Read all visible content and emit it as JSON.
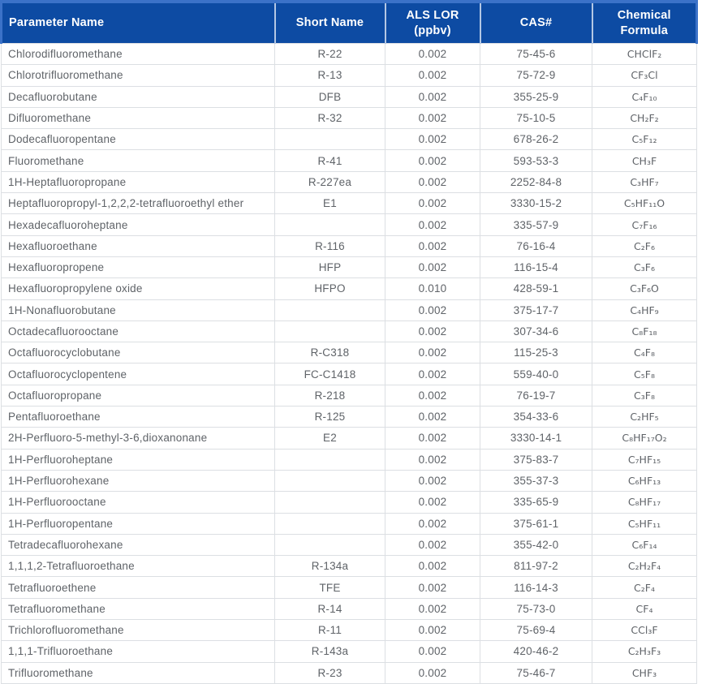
{
  "colors": {
    "header_bg": "#0d4ba3",
    "header_border": "#3b72c8",
    "header_text": "#ffffff",
    "body_text": "#5f6368",
    "grid_line": "#dcdfe3",
    "row_bg": "#ffffff"
  },
  "table": {
    "columns": [
      {
        "key": "parameter",
        "label": "Parameter Name"
      },
      {
        "key": "short_name",
        "label": "Short Name"
      },
      {
        "key": "als_lor",
        "label": "ALS LOR (ppbv)"
      },
      {
        "key": "cas",
        "label": "CAS#"
      },
      {
        "key": "formula",
        "label": "Chemical Formula"
      }
    ],
    "rows": [
      {
        "parameter": "Chlorodifluoromethane",
        "short_name": "R-22",
        "als_lor": "0.002",
        "cas": "75-45-6",
        "formula": "CHClF₂"
      },
      {
        "parameter": "Chlorotrifluoromethane",
        "short_name": "R-13",
        "als_lor": "0.002",
        "cas": "75-72-9",
        "formula": "CF₃Cl"
      },
      {
        "parameter": "Decafluorobutane",
        "short_name": "DFB",
        "als_lor": "0.002",
        "cas": "355-25-9",
        "formula": "C₄F₁₀"
      },
      {
        "parameter": "Difluoromethane",
        "short_name": "R-32",
        "als_lor": "0.002",
        "cas": "75-10-5",
        "formula": "CH₂F₂"
      },
      {
        "parameter": "Dodecafluoropentane",
        "short_name": "",
        "als_lor": "0.002",
        "cas": "678-26-2",
        "formula": "C₅F₁₂"
      },
      {
        "parameter": "Fluoromethane",
        "short_name": "R-41",
        "als_lor": "0.002",
        "cas": "593-53-3",
        "formula": "CH₃F"
      },
      {
        "parameter": "1H-Heptafluoropropane",
        "short_name": "R-227ea",
        "als_lor": "0.002",
        "cas": "2252-84-8",
        "formula": "C₃HF₇"
      },
      {
        "parameter": "Heptafluoropropyl-1,2,2,2-tetrafluoroethyl ether",
        "short_name": "E1",
        "als_lor": "0.002",
        "cas": "3330-15-2",
        "formula": "C₅HF₁₁O"
      },
      {
        "parameter": "Hexadecafluoroheptane",
        "short_name": "",
        "als_lor": "0.002",
        "cas": "335-57-9",
        "formula": "C₇F₁₆"
      },
      {
        "parameter": "Hexafluoroethane",
        "short_name": "R-116",
        "als_lor": "0.002",
        "cas": "76-16-4",
        "formula": "C₂F₆"
      },
      {
        "parameter": "Hexafluoropropene",
        "short_name": "HFP",
        "als_lor": "0.002",
        "cas": "116-15-4",
        "formula": "C₃F₆"
      },
      {
        "parameter": "Hexafluoropropylene oxide",
        "short_name": "HFPO",
        "als_lor": "0.010",
        "cas": "428-59-1",
        "formula": "C₃F₆O"
      },
      {
        "parameter": "1H-Nonafluorobutane",
        "short_name": "",
        "als_lor": "0.002",
        "cas": "375-17-7",
        "formula": "C₄HF₉"
      },
      {
        "parameter": "Octadecafluorooctane",
        "short_name": "",
        "als_lor": "0.002",
        "cas": "307-34-6",
        "formula": "C₈F₁₈"
      },
      {
        "parameter": "Octafluorocyclobutane",
        "short_name": "R-C318",
        "als_lor": "0.002",
        "cas": "115-25-3",
        "formula": "C₄F₈"
      },
      {
        "parameter": "Octafluorocyclopentene",
        "short_name": "FC-C1418",
        "als_lor": "0.002",
        "cas": "559-40-0",
        "formula": "C₅F₈"
      },
      {
        "parameter": "Octafluoropropane",
        "short_name": "R-218",
        "als_lor": "0.002",
        "cas": "76-19-7",
        "formula": "C₃F₈"
      },
      {
        "parameter": "Pentafluoroethane",
        "short_name": "R-125",
        "als_lor": "0.002",
        "cas": "354-33-6",
        "formula": "C₂HF₅"
      },
      {
        "parameter": "2H-Perfluoro-5-methyl-3-6,dioxanonane",
        "short_name": "E2",
        "als_lor": "0.002",
        "cas": "3330-14-1",
        "formula": "C₈HF₁₇O₂"
      },
      {
        "parameter": "1H-Perfluoroheptane",
        "short_name": "",
        "als_lor": "0.002",
        "cas": "375-83-7",
        "formula": "C₇HF₁₅"
      },
      {
        "parameter": "1H-Perfluorohexane",
        "short_name": "",
        "als_lor": "0.002",
        "cas": "355-37-3",
        "formula": "C₆HF₁₃"
      },
      {
        "parameter": "1H-Perfluorooctane",
        "short_name": "",
        "als_lor": "0.002",
        "cas": "335-65-9",
        "formula": "C₈HF₁₇"
      },
      {
        "parameter": "1H-Perfluoropentane",
        "short_name": "",
        "als_lor": "0.002",
        "cas": "375-61-1",
        "formula": "C₅HF₁₁"
      },
      {
        "parameter": "Tetradecafluorohexane",
        "short_name": "",
        "als_lor": "0.002",
        "cas": "355-42-0",
        "formula": "C₆F₁₄"
      },
      {
        "parameter": "1,1,1,2-Tetrafluoroethane",
        "short_name": "R-134a",
        "als_lor": "0.002",
        "cas": "811-97-2",
        "formula": "C₂H₂F₄"
      },
      {
        "parameter": "Tetrafluoroethene",
        "short_name": "TFE",
        "als_lor": "0.002",
        "cas": "116-14-3",
        "formula": "C₂F₄"
      },
      {
        "parameter": "Tetrafluoromethane",
        "short_name": "R-14",
        "als_lor": "0.002",
        "cas": "75-73-0",
        "formula": "CF₄"
      },
      {
        "parameter": "Trichlorofluoromethane",
        "short_name": "R-11",
        "als_lor": "0.002",
        "cas": "75-69-4",
        "formula": "CCl₃F"
      },
      {
        "parameter": "1,1,1-Trifluoroethane",
        "short_name": "R-143a",
        "als_lor": "0.002",
        "cas": "420-46-2",
        "formula": "C₂H₃F₃"
      },
      {
        "parameter": "Trifluoromethane",
        "short_name": "R-23",
        "als_lor": "0.002",
        "cas": "75-46-7",
        "formula": "CHF₃"
      }
    ]
  }
}
